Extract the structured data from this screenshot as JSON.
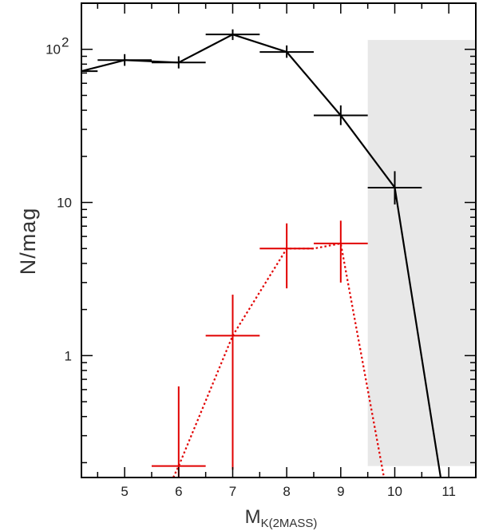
{
  "chart_data": {
    "type": "line",
    "title": "",
    "xlabel_main": "M",
    "xlabel_sub": "K(2MASS)",
    "ylabel": "N/mag",
    "xlim": [
      4.2,
      11.5
    ],
    "ylim": [
      0.16,
      200
    ],
    "yscale": "log",
    "x_ticks": [
      5,
      6,
      7,
      8,
      9,
      10,
      11
    ],
    "x_tick_labels": [
      "5",
      "6",
      "7",
      "8",
      "9",
      "10",
      "11"
    ],
    "y_ticks": [
      {
        "value": 100,
        "label": "10",
        "sup": "2"
      },
      {
        "value": 10,
        "label": "10",
        "sup": ""
      },
      {
        "value": 1,
        "label": "1",
        "sup": ""
      }
    ],
    "shaded_region": {
      "x_from": 9.5,
      "x_to": 11.5,
      "y_from": 0.19,
      "y_to": 115,
      "color": "#e8e8e8"
    },
    "series": [
      {
        "color": "#000000",
        "line_style": "solid",
        "x": [
          4.2,
          5,
          6,
          7,
          8,
          9,
          10,
          10.85
        ],
        "y": [
          72,
          85,
          82,
          125,
          96,
          37,
          12.5,
          0.16
        ],
        "markers": [
          {
            "x": 4.2,
            "y": 72,
            "xlo": 4.0,
            "xhi": 4.5,
            "ylo": 72,
            "yhi": 72
          },
          {
            "x": 5,
            "y": 85,
            "xlo": 4.5,
            "xhi": 5.5,
            "ylo": 78,
            "yhi": 93
          },
          {
            "x": 6,
            "y": 82,
            "xlo": 5.5,
            "xhi": 6.5,
            "ylo": 75,
            "yhi": 90
          },
          {
            "x": 7,
            "y": 125,
            "xlo": 6.5,
            "xhi": 7.5,
            "ylo": 115,
            "yhi": 135
          },
          {
            "x": 8,
            "y": 96,
            "xlo": 7.5,
            "xhi": 8.5,
            "ylo": 88,
            "yhi": 106
          },
          {
            "x": 9,
            "y": 37,
            "xlo": 8.5,
            "xhi": 9.5,
            "ylo": 32,
            "yhi": 43
          },
          {
            "x": 10,
            "y": 12.5,
            "xlo": 9.5,
            "xhi": 10.5,
            "ylo": 9.7,
            "yhi": 16
          }
        ]
      },
      {
        "color": "#e10000",
        "line_style": "dotted",
        "x": [
          5.9,
          6,
          7,
          8,
          8.5,
          9,
          9.8
        ],
        "y": [
          0.16,
          0.19,
          1.35,
          5,
          5,
          5.4,
          0.16
        ],
        "markers": [
          {
            "x": 6,
            "y": 0.19,
            "xlo": 5.5,
            "xhi": 6.5,
            "ylo": 0.16,
            "yhi": 0.63
          },
          {
            "x": 7,
            "y": 1.35,
            "xlo": 6.5,
            "xhi": 7.5,
            "ylo": 0.18,
            "yhi": 2.5
          },
          {
            "x": 8,
            "y": 5,
            "xlo": 7.5,
            "xhi": 8.5,
            "ylo": 2.75,
            "yhi": 7.3
          },
          {
            "x": 9,
            "y": 5.4,
            "xlo": 8.5,
            "xhi": 9.5,
            "ylo": 3.0,
            "yhi": 7.6
          }
        ]
      }
    ]
  }
}
